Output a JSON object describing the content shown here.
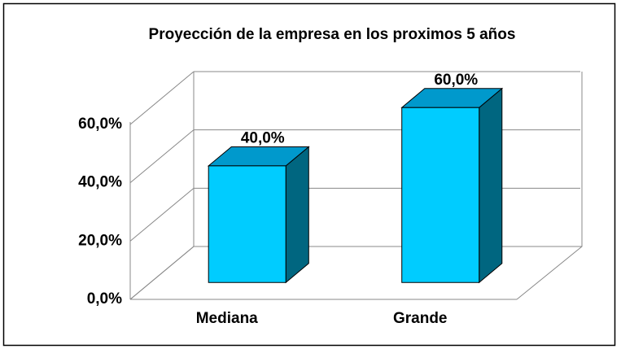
{
  "chart_data": {
    "type": "bar3d",
    "title": "Proyección de la empresa en los proximos 5 años",
    "categories": [
      "Mediana",
      "Grande"
    ],
    "values": [
      40,
      60
    ],
    "value_labels": [
      "40,0%",
      "60,0%"
    ],
    "color": "#00ccff",
    "ylim": [
      0,
      60
    ],
    "yticks": [
      {
        "value": 0,
        "label": "0,0%"
      },
      {
        "value": 20,
        "label": "20,0%"
      },
      {
        "value": 40,
        "label": "40,0%"
      },
      {
        "value": 60,
        "label": "60,0%"
      }
    ],
    "grid": true
  }
}
